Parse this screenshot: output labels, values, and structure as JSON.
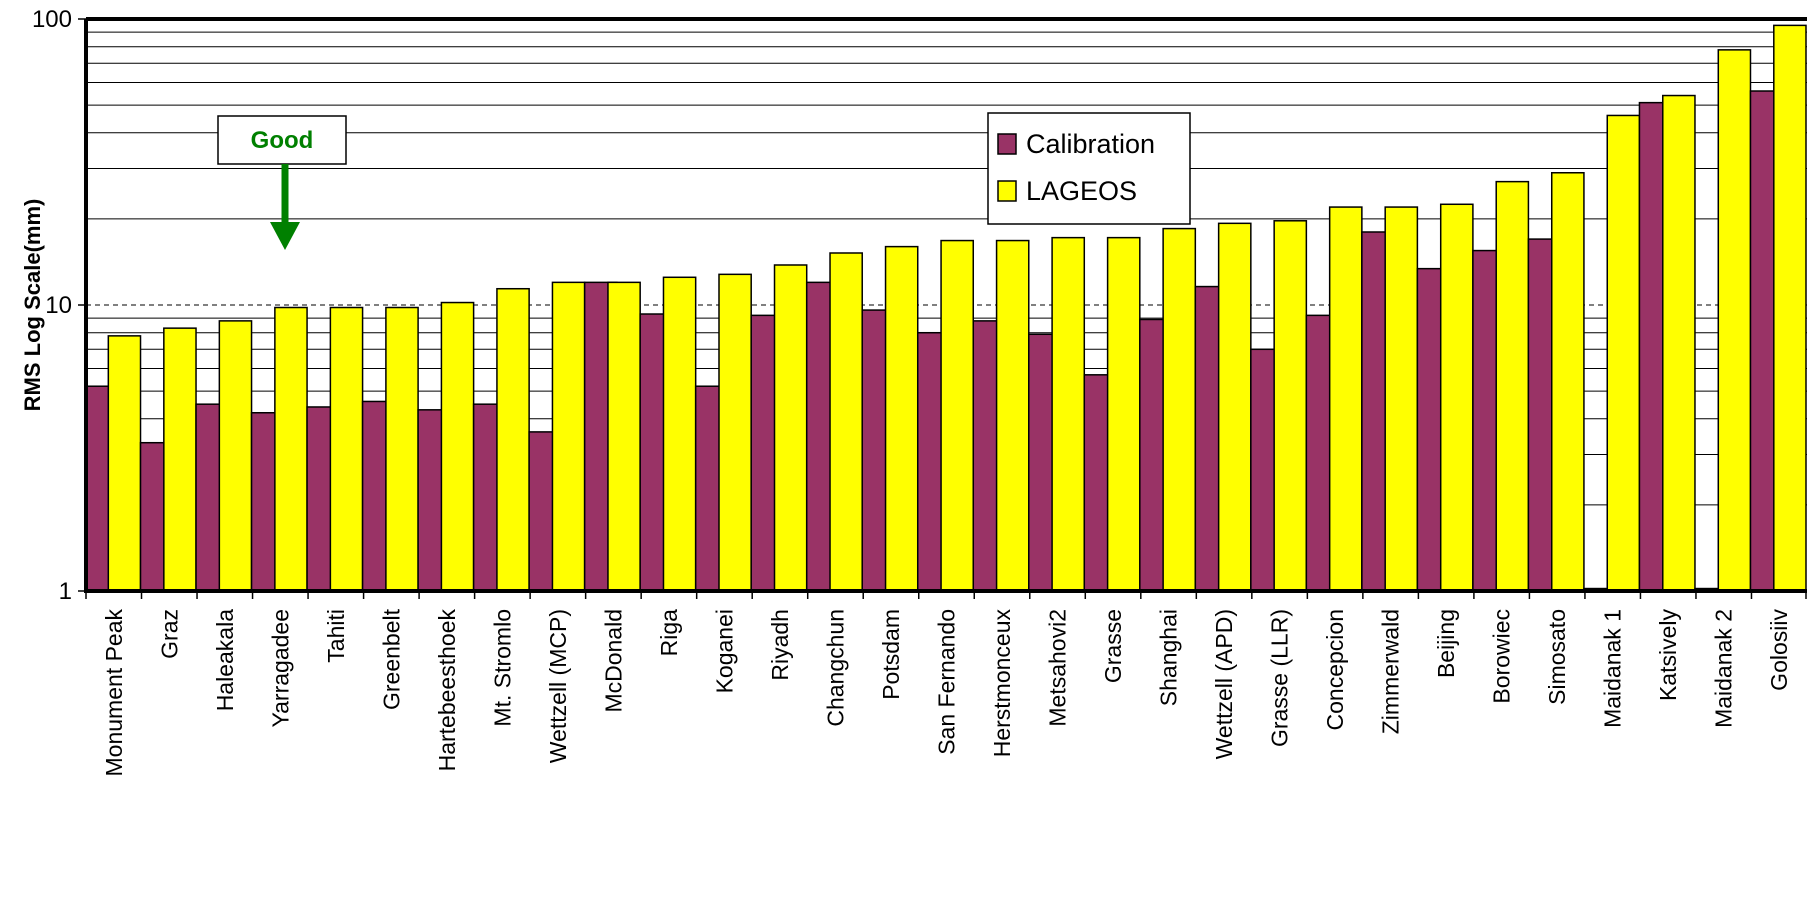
{
  "chart_data": {
    "type": "bar",
    "title": "",
    "xlabel": "",
    "ylabel": "RMS Log Scale(mm)",
    "y_scale": "log",
    "ylim": [
      1,
      100
    ],
    "y_ticks": [
      "1",
      "10",
      "100"
    ],
    "grid": true,
    "legend_position": "top-center",
    "categories": [
      "Monument Peak",
      "Graz",
      "Haleakala",
      "Yarragadee",
      "Tahiti",
      "Greenbelt",
      "Hartebeesthoek",
      "Mt. Stromlo",
      "Wettzell (MCP)",
      "McDonald",
      "Riga",
      "Koganei",
      "Riyadh",
      "Changchun",
      "Potsdam",
      "San Fernando",
      "Herstmonceux",
      "Metsahovi2",
      "Grasse",
      "Shanghai",
      "Wettzell (APD)",
      "Grasse (LLR)",
      "Concepcion",
      "Zimmerwald",
      "Beijing",
      "Borowiec",
      "Simosato",
      "Maidanak 1",
      "Katsively",
      "Maidanak 2",
      "Golosiiv"
    ],
    "series": [
      {
        "name": "Calibration",
        "color": "#993366",
        "values": [
          5.2,
          3.3,
          4.5,
          4.2,
          4.4,
          4.6,
          4.3,
          4.5,
          3.6,
          12.0,
          9.3,
          5.2,
          9.2,
          12.0,
          9.6,
          8.0,
          8.8,
          7.9,
          5.7,
          8.9,
          11.6,
          7.0,
          9.2,
          18.0,
          13.4,
          15.5,
          17.0,
          1.02,
          51.0,
          1.02,
          56.0
        ]
      },
      {
        "name": "LAGEOS",
        "color": "#ffff00",
        "values": [
          7.8,
          8.3,
          8.8,
          9.8,
          9.8,
          9.8,
          10.2,
          11.4,
          12.0,
          12.0,
          12.5,
          12.8,
          13.8,
          15.2,
          16.0,
          16.8,
          16.8,
          17.2,
          17.2,
          18.5,
          19.3,
          19.7,
          22.0,
          22.0,
          22.5,
          27.0,
          29.0,
          46.0,
          54.0,
          78.0,
          95.0
        ]
      }
    ],
    "annotation": {
      "text": "Good",
      "color": "#008000"
    }
  }
}
